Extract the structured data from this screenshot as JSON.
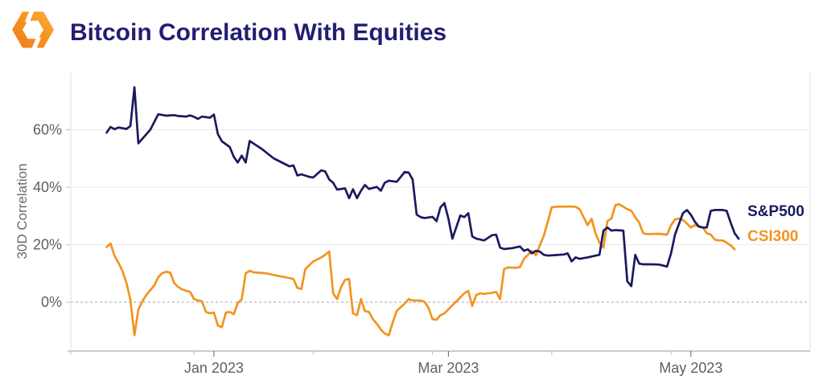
{
  "header": {
    "title": "Bitcoin Correlation With Equities",
    "logo": "kaiko-logo"
  },
  "legend": {
    "sp500_label": "S&P500",
    "csi300_label": "CSI300"
  },
  "colors": {
    "title": "#221e72",
    "sp500": "#1a1a5f",
    "csi300": "#f2941f",
    "grid": "#e8e8e8",
    "zero_line": "#a6a6a6",
    "plot_border": "#e2e2e2",
    "axis_line": "#9a9a9a",
    "tick_mark": "#c2c2c2",
    "tick_text": "#606060",
    "logo_orange_dark": "#ec7a1d",
    "logo_orange_light": "#fbb03b"
  },
  "chart_data": {
    "type": "line",
    "title": "Bitcoin Correlation With Equities",
    "xlabel": "",
    "ylabel": "30D Correlation",
    "legend_position": "right-inline",
    "grid": "horizontal, zero line dashed",
    "x_range": [
      "2022-11-26",
      "2023-05-31"
    ],
    "y_range": [
      -17,
      80
    ],
    "y_ticks": [
      {
        "value": 0,
        "label": "0%",
        "dashed": true
      },
      {
        "value": 20,
        "label": "20%",
        "dashed": false
      },
      {
        "value": 40,
        "label": "40%",
        "dashed": false
      },
      {
        "value": 60,
        "label": "60%",
        "dashed": false
      }
    ],
    "x_major_ticks": [
      {
        "date": "2023-01-01",
        "label": "Jan 2023"
      },
      {
        "date": "2023-03-01",
        "label": "Mar 2023"
      },
      {
        "date": "2023-05-01",
        "label": "May 2023"
      }
    ],
    "x_minor_ticks": [
      "2022-11-26",
      "2022-12-27",
      "2023-01-26",
      "2023-02-25",
      "2023-03-27",
      "2023-04-26"
    ],
    "series": [
      {
        "name": "CSI300",
        "color": "#f2941f",
        "points": [
          [
            "2022-12-05",
            19.2
          ],
          [
            "2022-12-06",
            20.4
          ],
          [
            "2022-12-07",
            16.2
          ],
          [
            "2022-12-08",
            13.7
          ],
          [
            "2022-12-09",
            10.9
          ],
          [
            "2022-12-10",
            6.7
          ],
          [
            "2022-12-11",
            0.8
          ],
          [
            "2022-12-12",
            -11.5
          ],
          [
            "2022-12-13",
            -2.5
          ],
          [
            "2022-12-14",
            0.3
          ],
          [
            "2022-12-15",
            2.5
          ],
          [
            "2022-12-17",
            5.9
          ],
          [
            "2022-12-18",
            8.7
          ],
          [
            "2022-12-19",
            10.1
          ],
          [
            "2022-12-20",
            10.6
          ],
          [
            "2022-12-21",
            10.3
          ],
          [
            "2022-12-22",
            6.7
          ],
          [
            "2022-12-23",
            5.3
          ],
          [
            "2022-12-24",
            4.5
          ],
          [
            "2022-12-25",
            4.0
          ],
          [
            "2022-12-26",
            3.6
          ],
          [
            "2022-12-27",
            1.1
          ],
          [
            "2022-12-28",
            0.6
          ],
          [
            "2022-12-29",
            0.3
          ],
          [
            "2022-12-30",
            -3.4
          ],
          [
            "2022-12-31",
            -3.9
          ],
          [
            "2023-01-01",
            -3.6
          ],
          [
            "2023-01-02",
            -8.1
          ],
          [
            "2023-01-03",
            -8.7
          ],
          [
            "2023-01-04",
            -3.6
          ],
          [
            "2023-01-05",
            -3.4
          ],
          [
            "2023-01-06",
            -4.2
          ],
          [
            "2023-01-07",
            -0.3
          ],
          [
            "2023-01-08",
            1.1
          ],
          [
            "2023-01-09",
            10.1
          ],
          [
            "2023-01-10",
            10.9
          ],
          [
            "2023-01-11",
            10.4
          ],
          [
            "2023-01-14",
            10.1
          ],
          [
            "2023-01-17",
            9.2
          ],
          [
            "2023-01-19",
            8.7
          ],
          [
            "2023-01-21",
            8.1
          ],
          [
            "2023-01-22",
            5.0
          ],
          [
            "2023-01-23",
            4.6
          ],
          [
            "2023-01-24",
            11.5
          ],
          [
            "2023-01-25",
            12.9
          ],
          [
            "2023-01-26",
            14.2
          ],
          [
            "2023-01-28",
            15.6
          ],
          [
            "2023-01-29",
            16.5
          ],
          [
            "2023-01-30",
            17.6
          ],
          [
            "2023-01-31",
            3.1
          ],
          [
            "2023-02-01",
            1.1
          ],
          [
            "2023-02-02",
            5.3
          ],
          [
            "2023-02-03",
            7.8
          ],
          [
            "2023-02-04",
            8.1
          ],
          [
            "2023-02-05",
            -3.9
          ],
          [
            "2023-02-06",
            -4.5
          ],
          [
            "2023-02-07",
            1.1
          ],
          [
            "2023-02-08",
            -3.1
          ],
          [
            "2023-02-09",
            -3.4
          ],
          [
            "2023-02-10",
            -5.9
          ],
          [
            "2023-02-11",
            -7.5
          ],
          [
            "2023-02-12",
            -9.5
          ],
          [
            "2023-02-13",
            -10.9
          ],
          [
            "2023-02-14",
            -11.5
          ],
          [
            "2023-02-15",
            -7.0
          ],
          [
            "2023-02-16",
            -3.0
          ],
          [
            "2023-02-18",
            -0.5
          ],
          [
            "2023-02-19",
            1.1
          ],
          [
            "2023-02-20",
            0.6
          ],
          [
            "2023-02-22",
            0.6
          ],
          [
            "2023-02-23",
            0.1
          ],
          [
            "2023-02-24",
            -2.0
          ],
          [
            "2023-02-25",
            -5.9
          ],
          [
            "2023-02-26",
            -6.1
          ],
          [
            "2023-02-27",
            -4.5
          ],
          [
            "2023-02-28",
            -3.9
          ],
          [
            "2023-03-01",
            -2.5
          ],
          [
            "2023-03-02",
            -1.1
          ],
          [
            "2023-03-03",
            0.3
          ],
          [
            "2023-03-04",
            1.7
          ],
          [
            "2023-03-05",
            3.1
          ],
          [
            "2023-03-06",
            3.9
          ],
          [
            "2023-03-07",
            -1.3
          ],
          [
            "2023-03-08",
            2.5
          ],
          [
            "2023-03-09",
            3.1
          ],
          [
            "2023-03-10",
            2.9
          ],
          [
            "2023-03-12",
            3.3
          ],
          [
            "2023-03-13",
            3.6
          ],
          [
            "2023-03-14",
            1.1
          ],
          [
            "2023-03-15",
            11.5
          ],
          [
            "2023-03-16",
            12.1
          ],
          [
            "2023-03-18",
            12.0
          ],
          [
            "2023-03-19",
            12.2
          ],
          [
            "2023-03-20",
            15.1
          ],
          [
            "2023-03-21",
            16.5
          ],
          [
            "2023-03-22",
            17.9
          ],
          [
            "2023-03-23",
            16.3
          ],
          [
            "2023-03-24",
            19.8
          ],
          [
            "2023-03-25",
            23.2
          ],
          [
            "2023-03-26",
            28.0
          ],
          [
            "2023-03-27",
            33.0
          ],
          [
            "2023-03-28",
            33.2
          ],
          [
            "2023-03-30",
            33.3
          ],
          [
            "2023-04-01",
            33.3
          ],
          [
            "2023-04-02",
            33.2
          ],
          [
            "2023-04-03",
            32.4
          ],
          [
            "2023-04-04",
            29.6
          ],
          [
            "2023-04-05",
            26.8
          ],
          [
            "2023-04-06",
            29.0
          ],
          [
            "2023-04-07",
            24.0
          ],
          [
            "2023-04-08",
            20.7
          ],
          [
            "2023-04-09",
            19.0
          ],
          [
            "2023-04-10",
            28.2
          ],
          [
            "2023-04-11",
            29.1
          ],
          [
            "2023-04-12",
            33.8
          ],
          [
            "2023-04-13",
            34.1
          ],
          [
            "2023-04-14",
            33.2
          ],
          [
            "2023-04-15",
            32.4
          ],
          [
            "2023-04-16",
            31.8
          ],
          [
            "2023-04-17",
            29.6
          ],
          [
            "2023-04-18",
            27.7
          ],
          [
            "2023-04-19",
            24.0
          ],
          [
            "2023-04-20",
            23.7
          ],
          [
            "2023-04-23",
            23.8
          ],
          [
            "2023-04-25",
            23.5
          ],
          [
            "2023-04-26",
            26.8
          ],
          [
            "2023-04-27",
            28.8
          ],
          [
            "2023-04-28",
            29.1
          ],
          [
            "2023-04-29",
            28.6
          ],
          [
            "2023-04-30",
            27.4
          ],
          [
            "2023-05-01",
            26.0
          ],
          [
            "2023-05-02",
            26.8
          ],
          [
            "2023-05-03",
            26.4
          ],
          [
            "2023-05-04",
            26.0
          ],
          [
            "2023-05-05",
            24.0
          ],
          [
            "2023-05-06",
            23.5
          ],
          [
            "2023-05-07",
            21.8
          ],
          [
            "2023-05-08",
            21.5
          ],
          [
            "2023-05-09",
            21.5
          ],
          [
            "2023-05-10",
            20.7
          ],
          [
            "2023-05-11",
            19.8
          ],
          [
            "2023-05-12",
            18.4
          ]
        ]
      },
      {
        "name": "S&P500",
        "color": "#1a1a5f",
        "points": [
          [
            "2022-12-05",
            59.0
          ],
          [
            "2022-12-06",
            61.0
          ],
          [
            "2022-12-07",
            60.2
          ],
          [
            "2022-12-08",
            60.8
          ],
          [
            "2022-12-10",
            60.3
          ],
          [
            "2022-12-11",
            61.3
          ],
          [
            "2022-12-12",
            74.8
          ],
          [
            "2022-12-13",
            55.3
          ],
          [
            "2022-12-16",
            60.0
          ],
          [
            "2022-12-18",
            65.4
          ],
          [
            "2022-12-20",
            64.9
          ],
          [
            "2022-12-22",
            65.1
          ],
          [
            "2022-12-23",
            64.8
          ],
          [
            "2022-12-25",
            64.6
          ],
          [
            "2022-12-26",
            65.0
          ],
          [
            "2022-12-27",
            64.5
          ],
          [
            "2022-12-28",
            63.8
          ],
          [
            "2022-12-29",
            64.6
          ],
          [
            "2022-12-31",
            64.2
          ],
          [
            "2023-01-01",
            65.3
          ],
          [
            "2023-01-02",
            58.5
          ],
          [
            "2023-01-03",
            56.0
          ],
          [
            "2023-01-05",
            54.0
          ],
          [
            "2023-01-06",
            50.6
          ],
          [
            "2023-01-07",
            48.6
          ],
          [
            "2023-01-08",
            51.0
          ],
          [
            "2023-01-09",
            48.6
          ],
          [
            "2023-01-10",
            56.1
          ],
          [
            "2023-01-13",
            53.4
          ],
          [
            "2023-01-16",
            50.1
          ],
          [
            "2023-01-20",
            47.3
          ],
          [
            "2023-01-21",
            47.6
          ],
          [
            "2023-01-22",
            44.1
          ],
          [
            "2023-01-23",
            44.5
          ],
          [
            "2023-01-25",
            43.6
          ],
          [
            "2023-01-26",
            43.4
          ],
          [
            "2023-01-28",
            45.9
          ],
          [
            "2023-01-29",
            45.5
          ],
          [
            "2023-01-30",
            42.7
          ],
          [
            "2023-01-31",
            41.6
          ],
          [
            "2023-02-01",
            39.2
          ],
          [
            "2023-02-03",
            39.6
          ],
          [
            "2023-02-04",
            36.2
          ],
          [
            "2023-02-05",
            39.3
          ],
          [
            "2023-02-06",
            36.2
          ],
          [
            "2023-02-07",
            38.8
          ],
          [
            "2023-02-08",
            40.8
          ],
          [
            "2023-02-09",
            39.4
          ],
          [
            "2023-02-11",
            40.1
          ],
          [
            "2023-02-12",
            38.8
          ],
          [
            "2023-02-13",
            41.6
          ],
          [
            "2023-02-14",
            42.3
          ],
          [
            "2023-02-16",
            41.9
          ],
          [
            "2023-02-18",
            45.3
          ],
          [
            "2023-02-19",
            45.1
          ],
          [
            "2023-02-20",
            42.7
          ],
          [
            "2023-02-21",
            30.5
          ],
          [
            "2023-02-22",
            29.6
          ],
          [
            "2023-02-23",
            29.3
          ],
          [
            "2023-02-25",
            29.7
          ],
          [
            "2023-02-26",
            28.2
          ],
          [
            "2023-02-27",
            33.0
          ],
          [
            "2023-02-28",
            34.5
          ],
          [
            "2023-03-01",
            29.0
          ],
          [
            "2023-03-02",
            22.1
          ],
          [
            "2023-03-04",
            30.2
          ],
          [
            "2023-03-05",
            29.6
          ],
          [
            "2023-03-06",
            31.0
          ],
          [
            "2023-03-07",
            22.9
          ],
          [
            "2023-03-08",
            22.1
          ],
          [
            "2023-03-10",
            21.5
          ],
          [
            "2023-03-12",
            23.3
          ],
          [
            "2023-03-13",
            23.5
          ],
          [
            "2023-03-14",
            19.0
          ],
          [
            "2023-03-15",
            18.5
          ],
          [
            "2023-03-17",
            18.8
          ],
          [
            "2023-03-19",
            19.4
          ],
          [
            "2023-03-20",
            17.9
          ],
          [
            "2023-03-21",
            18.4
          ],
          [
            "2023-03-22",
            17.0
          ],
          [
            "2023-03-23",
            17.9
          ],
          [
            "2023-03-24",
            17.6
          ],
          [
            "2023-03-25",
            16.5
          ],
          [
            "2023-03-26",
            16.2
          ],
          [
            "2023-03-28",
            16.4
          ],
          [
            "2023-03-30",
            16.6
          ],
          [
            "2023-03-31",
            17.0
          ],
          [
            "2023-04-01",
            14.2
          ],
          [
            "2023-04-02",
            15.6
          ],
          [
            "2023-04-03",
            15.1
          ],
          [
            "2023-04-05",
            15.6
          ],
          [
            "2023-04-06",
            15.9
          ],
          [
            "2023-04-07",
            16.2
          ],
          [
            "2023-04-08",
            16.5
          ],
          [
            "2023-04-09",
            24.9
          ],
          [
            "2023-04-10",
            26.0
          ],
          [
            "2023-04-11",
            24.9
          ],
          [
            "2023-04-12",
            25.1
          ],
          [
            "2023-04-14",
            24.9
          ],
          [
            "2023-04-15",
            7.3
          ],
          [
            "2023-04-16",
            5.6
          ],
          [
            "2023-04-17",
            16.5
          ],
          [
            "2023-04-18",
            13.4
          ],
          [
            "2023-04-19",
            13.2
          ],
          [
            "2023-04-21",
            13.2
          ],
          [
            "2023-04-23",
            13.1
          ],
          [
            "2023-04-25",
            12.4
          ],
          [
            "2023-04-26",
            17.0
          ],
          [
            "2023-04-27",
            23.5
          ],
          [
            "2023-04-29",
            31.0
          ],
          [
            "2023-04-30",
            32.1
          ],
          [
            "2023-05-01",
            30.4
          ],
          [
            "2023-05-02",
            28.0
          ],
          [
            "2023-05-03",
            26.3
          ],
          [
            "2023-05-04",
            26.0
          ],
          [
            "2023-05-05",
            26.0
          ],
          [
            "2023-05-06",
            31.8
          ],
          [
            "2023-05-07",
            32.1
          ],
          [
            "2023-05-09",
            32.1
          ],
          [
            "2023-05-10",
            31.8
          ],
          [
            "2023-05-11",
            27.7
          ],
          [
            "2023-05-12",
            24.0
          ],
          [
            "2023-05-13",
            22.1
          ]
        ]
      }
    ]
  }
}
